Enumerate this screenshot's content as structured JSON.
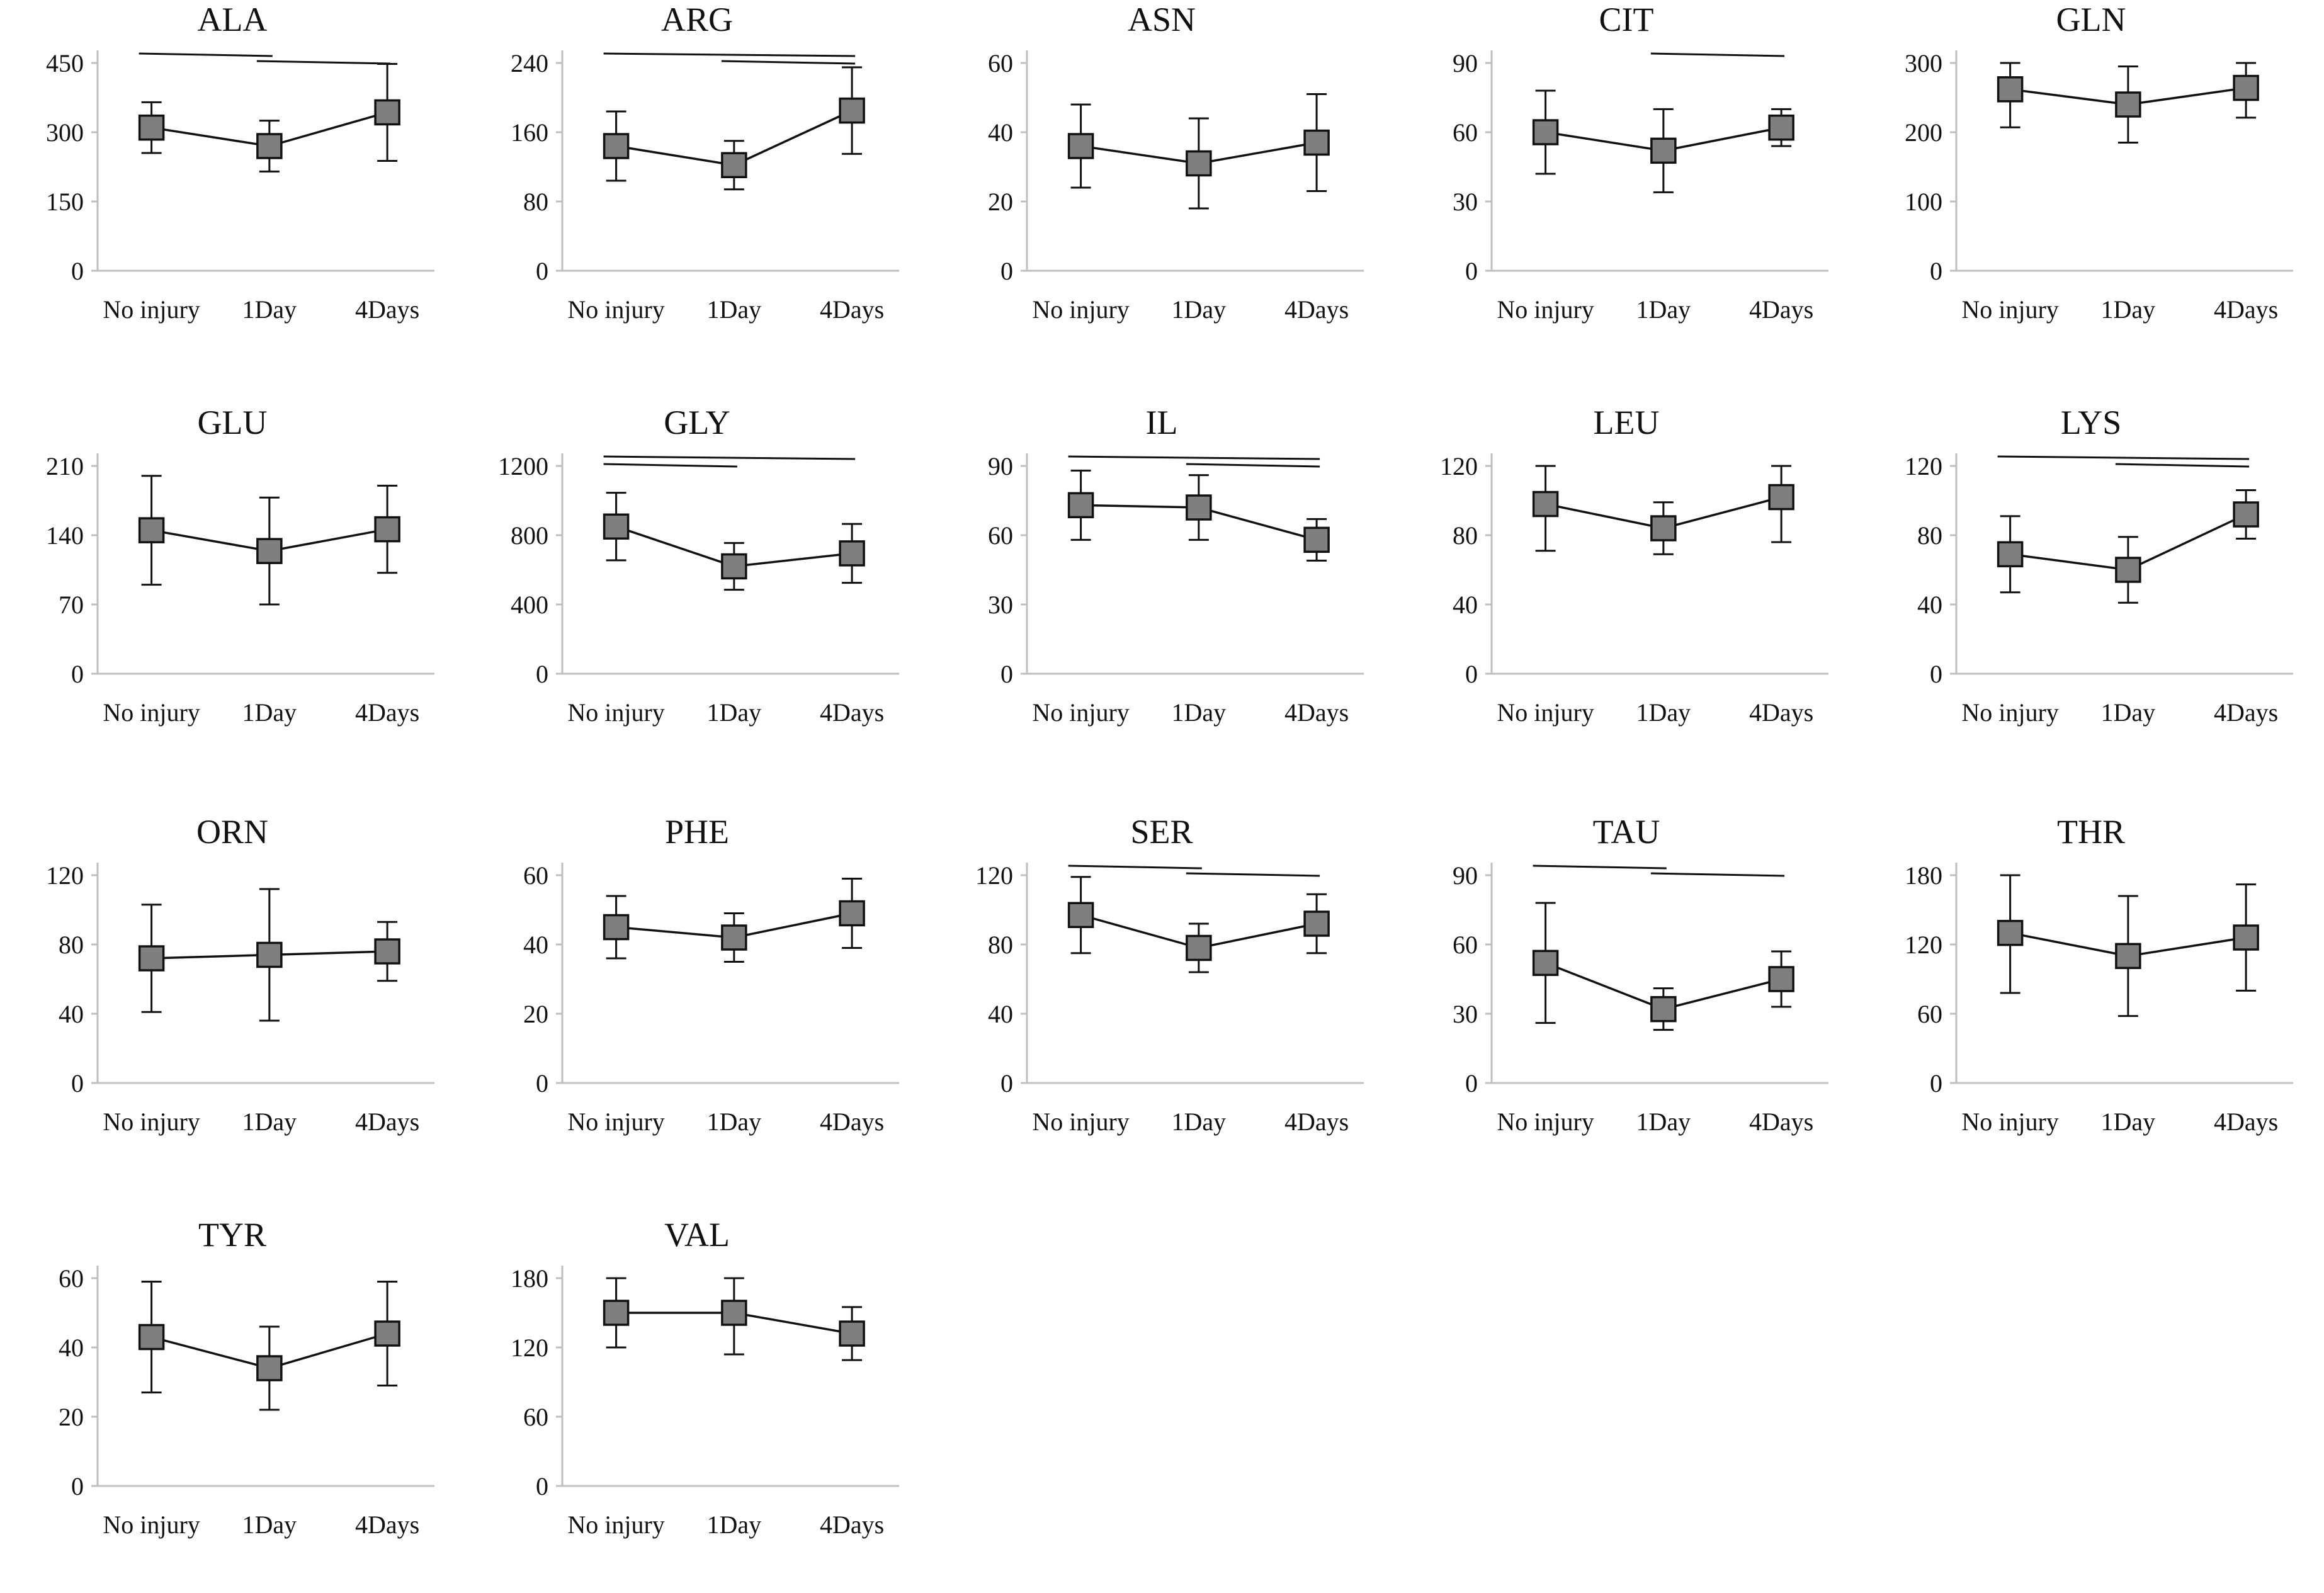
{
  "figure": {
    "colors": {
      "marker_fill": "#7f7f7f",
      "marker_stroke": "#111111",
      "line": "#111111",
      "axis": "#bfbfbf"
    }
  },
  "chart_data": [
    {
      "type": "line",
      "title": "ALA",
      "categories": [
        "No injury",
        "1Day",
        "4Days"
      ],
      "values": [
        310,
        270,
        343
      ],
      "errors": [
        55,
        55,
        105
      ],
      "ylim": [
        0,
        450
      ],
      "yticks": [
        "0",
        "150",
        "300",
        "450"
      ],
      "brackets": [
        [
          0,
          1
        ],
        [
          1,
          2
        ]
      ]
    },
    {
      "type": "line",
      "title": "ARG",
      "categories": [
        "No injury",
        "1Day",
        "4Days"
      ],
      "values": [
        144,
        122,
        185
      ],
      "errors": [
        40,
        28,
        50
      ],
      "ylim": [
        0,
        240
      ],
      "yticks": [
        "0",
        "80",
        "160",
        "240"
      ],
      "brackets": [
        [
          0,
          2
        ],
        [
          1,
          2
        ]
      ]
    },
    {
      "type": "line",
      "title": "ASN",
      "categories": [
        "No injury",
        "1Day",
        "4Days"
      ],
      "values": [
        36,
        31,
        37
      ],
      "errors": [
        12,
        13,
        14
      ],
      "ylim": [
        0,
        60
      ],
      "yticks": [
        "0",
        "20",
        "40",
        "60"
      ],
      "brackets": []
    },
    {
      "type": "line",
      "title": "CIT",
      "categories": [
        "No injury",
        "1Day",
        "4Days"
      ],
      "values": [
        60,
        52,
        62
      ],
      "errors": [
        18,
        18,
        8
      ],
      "ylim": [
        0,
        90
      ],
      "yticks": [
        "0",
        "30",
        "60",
        "90"
      ],
      "brackets": [
        [
          1,
          2
        ]
      ]
    },
    {
      "type": "line",
      "title": "GLN",
      "categories": [
        "No injury",
        "1Day",
        "4Days"
      ],
      "values": [
        262,
        240,
        264
      ],
      "errors": [
        55,
        55,
        43
      ],
      "ylim": [
        0,
        300
      ],
      "yticks": [
        "0",
        "100",
        "200",
        "300"
      ],
      "brackets": []
    },
    {
      "type": "line",
      "title": "GLU",
      "categories": [
        "No injury",
        "1Day",
        "4Days"
      ],
      "values": [
        145,
        124,
        146
      ],
      "errors": [
        55,
        54,
        44
      ],
      "ylim": [
        0,
        210
      ],
      "yticks": [
        "0",
        "70",
        "140",
        "210"
      ],
      "brackets": []
    },
    {
      "type": "line",
      "title": "GLY",
      "categories": [
        "No injury",
        "1Day",
        "4Days"
      ],
      "values": [
        850,
        620,
        695
      ],
      "errors": [
        195,
        135,
        170
      ],
      "ylim": [
        0,
        1200
      ],
      "yticks": [
        "0",
        "400",
        "800",
        "1200"
      ],
      "brackets": [
        [
          0,
          2
        ],
        [
          0,
          1
        ]
      ]
    },
    {
      "type": "line",
      "title": "IL",
      "categories": [
        "No injury",
        "1Day",
        "4Days"
      ],
      "values": [
        73,
        72,
        58
      ],
      "errors": [
        15,
        14,
        9
      ],
      "ylim": [
        0,
        90
      ],
      "yticks": [
        "0",
        "30",
        "60",
        "90"
      ],
      "brackets": [
        [
          0,
          2
        ],
        [
          1,
          2
        ]
      ]
    },
    {
      "type": "line",
      "title": "LEU",
      "categories": [
        "No injury",
        "1Day",
        "4Days"
      ],
      "values": [
        98,
        84,
        102
      ],
      "errors": [
        27,
        15,
        26
      ],
      "ylim": [
        0,
        120
      ],
      "yticks": [
        "0",
        "40",
        "80",
        "120"
      ],
      "brackets": []
    },
    {
      "type": "line",
      "title": "LYS",
      "categories": [
        "No injury",
        "1Day",
        "4Days"
      ],
      "values": [
        69,
        60,
        92
      ],
      "errors": [
        22,
        19,
        14
      ],
      "ylim": [
        0,
        120
      ],
      "yticks": [
        "0",
        "40",
        "80",
        "120"
      ],
      "brackets": [
        [
          0,
          2
        ],
        [
          1,
          2
        ]
      ]
    },
    {
      "type": "line",
      "title": "ORN",
      "categories": [
        "No injury",
        "1Day",
        "4Days"
      ],
      "values": [
        72,
        74,
        76
      ],
      "errors": [
        31,
        38,
        17
      ],
      "ylim": [
        0,
        120
      ],
      "yticks": [
        "0",
        "40",
        "80",
        "120"
      ],
      "brackets": []
    },
    {
      "type": "line",
      "title": "PHE",
      "categories": [
        "No injury",
        "1Day",
        "4Days"
      ],
      "values": [
        45,
        42,
        49
      ],
      "errors": [
        9,
        7,
        10
      ],
      "ylim": [
        0,
        60
      ],
      "yticks": [
        "0",
        "20",
        "40",
        "60"
      ],
      "brackets": []
    },
    {
      "type": "line",
      "title": "SER",
      "categories": [
        "No injury",
        "1Day",
        "4Days"
      ],
      "values": [
        97,
        78,
        92
      ],
      "errors": [
        22,
        14,
        17
      ],
      "ylim": [
        0,
        120
      ],
      "yticks": [
        "0",
        "40",
        "80",
        "120"
      ],
      "brackets": [
        [
          0,
          1
        ],
        [
          1,
          2
        ]
      ]
    },
    {
      "type": "line",
      "title": "TAU",
      "categories": [
        "No injury",
        "1Day",
        "4Days"
      ],
      "values": [
        52,
        32,
        45
      ],
      "errors": [
        26,
        9,
        12
      ],
      "ylim": [
        0,
        90
      ],
      "yticks": [
        "0",
        "30",
        "60",
        "90"
      ],
      "brackets": [
        [
          0,
          1
        ],
        [
          1,
          2
        ]
      ]
    },
    {
      "type": "line",
      "title": "THR",
      "categories": [
        "No injury",
        "1Day",
        "4Days"
      ],
      "values": [
        130,
        110,
        126
      ],
      "errors": [
        52,
        52,
        46
      ],
      "ylim": [
        0,
        180
      ],
      "yticks": [
        "0",
        "60",
        "120",
        "180"
      ],
      "brackets": []
    },
    {
      "type": "line",
      "title": "TYR",
      "categories": [
        "No injury",
        "1Day",
        "4Days"
      ],
      "values": [
        43,
        34,
        44
      ],
      "errors": [
        16,
        12,
        15
      ],
      "ylim": [
        0,
        60
      ],
      "yticks": [
        "0",
        "20",
        "40",
        "60"
      ],
      "brackets": []
    },
    {
      "type": "line",
      "title": "VAL",
      "categories": [
        "No injury",
        "1Day",
        "4Days"
      ],
      "values": [
        150,
        150,
        132
      ],
      "errors": [
        30,
        36,
        23
      ],
      "ylim": [
        0,
        180
      ],
      "yticks": [
        "0",
        "60",
        "120",
        "180"
      ],
      "brackets": []
    }
  ]
}
